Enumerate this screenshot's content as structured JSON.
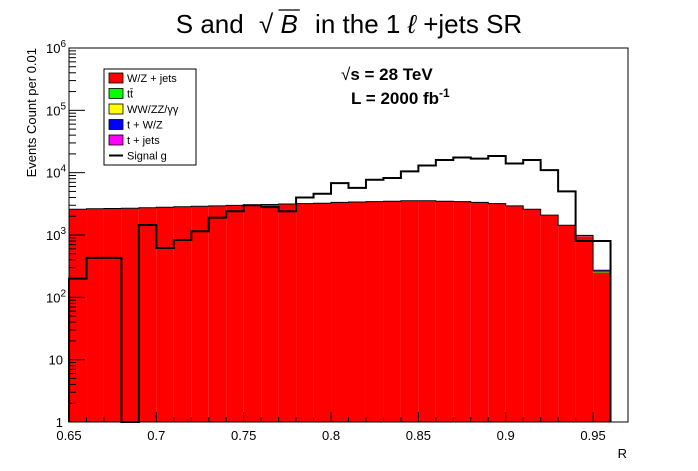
{
  "chart_data": {
    "type": "histogram",
    "title": {
      "left": "S and",
      "sqrt_symbol": "√",
      "sqrt_arg": "B",
      "right_prefix": "in the 1",
      "ell": "ℓ",
      "right_suffix": "+jets SR"
    },
    "xlabel": "R",
    "ylabel": "Events Count per 0.01",
    "xlim": [
      0.65,
      0.97
    ],
    "ylim": [
      1,
      1000000
    ],
    "yscale": "log",
    "bin_edges": [
      0.65,
      0.66,
      0.67,
      0.68,
      0.69,
      0.7,
      0.71,
      0.72,
      0.73,
      0.74,
      0.75,
      0.76,
      0.77,
      0.78,
      0.79,
      0.8,
      0.81,
      0.82,
      0.83,
      0.84,
      0.85,
      0.86,
      0.87,
      0.88,
      0.89,
      0.9,
      0.91,
      0.92,
      0.93,
      0.94,
      0.95,
      0.96
    ],
    "x_ticks": [
      {
        "value": 0.65,
        "label": "0.65"
      },
      {
        "value": 0.7,
        "label": "0.7"
      },
      {
        "value": 0.75,
        "label": "0.75"
      },
      {
        "value": 0.8,
        "label": "0.8"
      },
      {
        "value": 0.85,
        "label": "0.85"
      },
      {
        "value": 0.9,
        "label": "0.9"
      },
      {
        "value": 0.95,
        "label": "0.95"
      }
    ],
    "y_ticks": [
      {
        "value": 1,
        "base": "1",
        "exp": ""
      },
      {
        "value": 10,
        "base": "10",
        "exp": ""
      },
      {
        "value": 100,
        "base": "10",
        "exp": "2"
      },
      {
        "value": 1000,
        "base": "10",
        "exp": "3"
      },
      {
        "value": 10000,
        "base": "10",
        "exp": "4"
      },
      {
        "value": 100000,
        "base": "10",
        "exp": "5"
      },
      {
        "value": 1000000,
        "base": "10",
        "exp": "6"
      }
    ],
    "series": [
      {
        "name": "W/Z + jets",
        "kind": "stack",
        "color": "#ff0000",
        "values": [
          2550,
          2600,
          2620,
          2650,
          2700,
          2750,
          2800,
          2850,
          2900,
          2950,
          3000,
          3050,
          3100,
          3150,
          3200,
          3300,
          3350,
          3400,
          3450,
          3500,
          3500,
          3450,
          3400,
          3300,
          3150,
          2900,
          2550,
          2050,
          1400,
          950,
          250
        ]
      },
      {
        "name": "tt̄",
        "kind": "stack",
        "color": "#00ff00",
        "values": [
          5,
          5,
          5,
          5,
          5,
          5,
          5,
          5,
          5,
          5,
          5,
          5,
          5,
          5,
          5,
          5,
          5,
          5,
          5,
          5,
          5,
          5,
          5,
          5,
          5,
          5,
          5,
          5,
          5,
          5,
          5
        ]
      },
      {
        "name": "WW/ZZ/γγ",
        "kind": "stack",
        "color": "#ffff00",
        "values": [
          2,
          2,
          2,
          2,
          2,
          2,
          2,
          2,
          2,
          2,
          2,
          2,
          2,
          2,
          2,
          2,
          2,
          2,
          2,
          2,
          2,
          2,
          2,
          2,
          2,
          2,
          2,
          2,
          2,
          2,
          2
        ]
      },
      {
        "name": "t + W/Z",
        "kind": "stack",
        "color": "#0000ff",
        "values": [
          20,
          20,
          20,
          20,
          20,
          20,
          20,
          20,
          20,
          20,
          20,
          20,
          20,
          20,
          20,
          20,
          20,
          20,
          20,
          20,
          20,
          20,
          20,
          20,
          20,
          20,
          20,
          20,
          20,
          20,
          10
        ]
      },
      {
        "name": "t + jets",
        "kind": "stack",
        "color": "#ff00ff",
        "values": [
          10,
          10,
          10,
          10,
          10,
          10,
          10,
          10,
          10,
          10,
          10,
          10,
          10,
          10,
          10,
          10,
          10,
          10,
          10,
          10,
          10,
          10,
          10,
          10,
          10,
          10,
          10,
          10,
          10,
          10,
          5
        ]
      },
      {
        "name": "Signal g",
        "kind": "line",
        "color": "#000000",
        "values": [
          200,
          430,
          430,
          1,
          1450,
          620,
          830,
          1150,
          1900,
          2400,
          3000,
          2800,
          2400,
          4000,
          4600,
          6800,
          5700,
          7700,
          8200,
          10500,
          13000,
          16000,
          17500,
          16800,
          18500,
          14000,
          16000,
          11000,
          5000,
          800,
          800
        ]
      }
    ],
    "legend": {
      "placement": "top-left"
    },
    "annotations": [
      {
        "id": "energy",
        "sqrt_symbol": "√",
        "text": "s = 28 TeV"
      },
      {
        "id": "lumi",
        "text": "L = 2000 fb",
        "sup": "-1"
      }
    ]
  }
}
